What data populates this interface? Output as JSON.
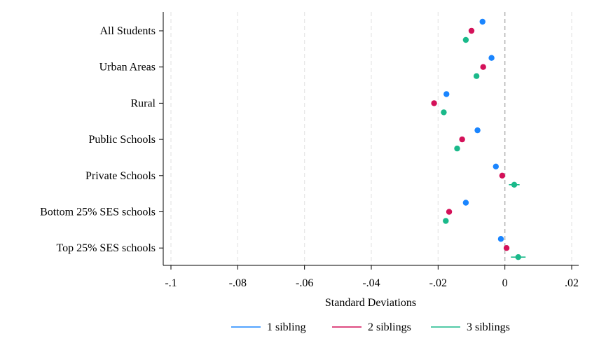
{
  "chart_data": {
    "type": "scatter",
    "orientation": "horizontal",
    "categories": [
      "All Students",
      "Urban Areas",
      "Rural",
      "Public Schools",
      "Private Schools",
      "Bottom 25% SES schools",
      "Top 25% SES schools"
    ],
    "series": [
      {
        "name": "1 sibling",
        "color": "#1a85ff",
        "values": [
          -0.0067,
          -0.004,
          -0.0175,
          -0.0082,
          -0.0027,
          -0.0117,
          -0.0012
        ],
        "ci_low": [
          -0.0067,
          -0.004,
          -0.0175,
          -0.0082,
          -0.0027,
          -0.0117,
          -0.0012
        ],
        "ci_high": [
          -0.0067,
          -0.004,
          -0.0175,
          -0.0082,
          -0.0027,
          -0.0117,
          -0.0012
        ]
      },
      {
        "name": "2 siblings",
        "color": "#d41159",
        "values": [
          -0.01,
          -0.0065,
          -0.0212,
          -0.0128,
          -0.0008,
          -0.0167,
          0.0005
        ],
        "ci_low": [
          -0.01,
          -0.0065,
          -0.0212,
          -0.0128,
          -0.0008,
          -0.0167,
          0.0
        ],
        "ci_high": [
          -0.01,
          -0.0065,
          -0.0212,
          -0.0128,
          -0.0008,
          -0.0167,
          0.001
        ]
      },
      {
        "name": "3 siblings",
        "color": "#1ab98a",
        "values": [
          -0.0117,
          -0.0085,
          -0.0183,
          -0.0143,
          0.0028,
          -0.0177,
          0.004
        ],
        "ci_low": [
          -0.0117,
          -0.0088,
          -0.019,
          -0.0146,
          0.0012,
          -0.0185,
          0.0018
        ],
        "ci_high": [
          -0.0117,
          -0.0082,
          -0.0176,
          -0.014,
          0.0044,
          -0.0169,
          0.0062
        ]
      }
    ],
    "xlabel": "Standard Deviations",
    "xlim": [
      -0.1,
      0.02
    ],
    "xticks": [
      -0.1,
      -0.08,
      -0.06,
      -0.04,
      -0.02,
      0,
      0.02
    ],
    "xtick_labels": [
      "-.1",
      "-.08",
      "-.06",
      "-.04",
      "-.02",
      "0",
      ".02"
    ],
    "reference_line": 0,
    "grid": "vertical dashed",
    "legend_position": "bottom"
  }
}
